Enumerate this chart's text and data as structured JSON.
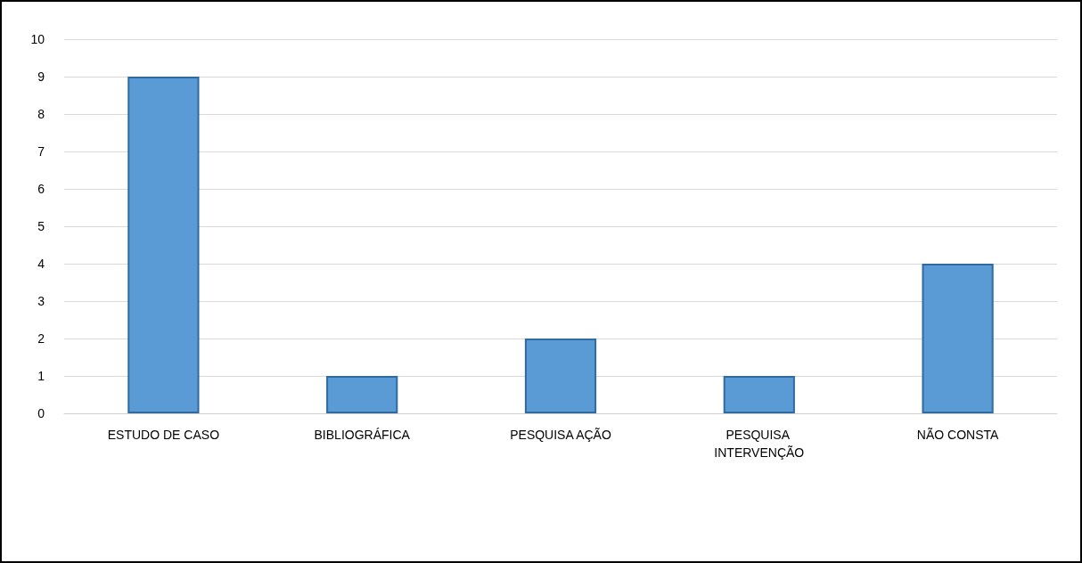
{
  "chart_data": {
    "type": "bar",
    "categories": [
      "ESTUDO DE CASO",
      "BIBLIOGRÁFICA",
      "PESQUISA AÇÃO",
      "PESQUISA INTERVENÇÃO",
      "NÃO CONSTA"
    ],
    "values": [
      9,
      1,
      2,
      1,
      4
    ],
    "color": "#5b9bd5",
    "ylim": [
      0,
      10
    ],
    "yticks": [
      0,
      1,
      2,
      3,
      4,
      5,
      6,
      7,
      8,
      9,
      10
    ],
    "grid": "y"
  }
}
